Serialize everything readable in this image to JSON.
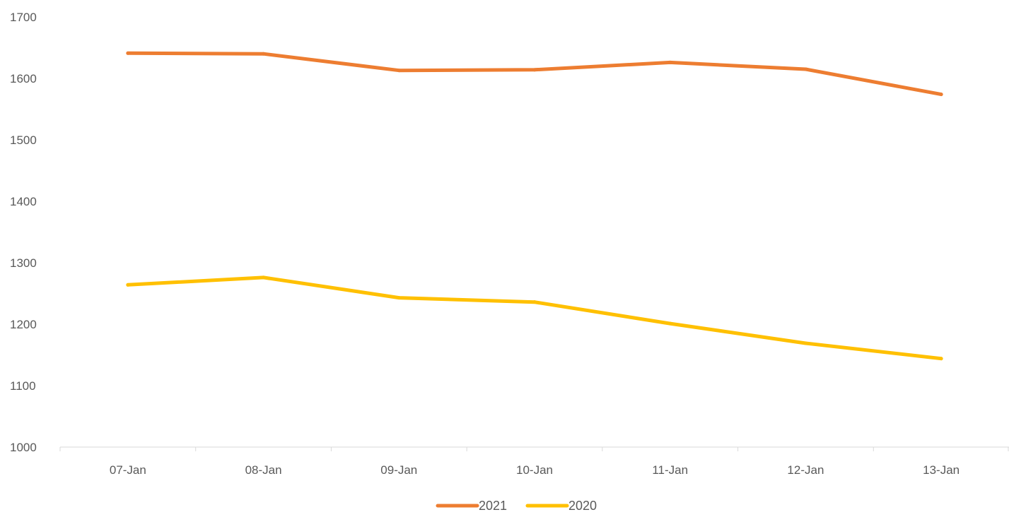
{
  "chart_data": {
    "type": "line",
    "title": "",
    "xlabel": "",
    "ylabel": "",
    "categories": [
      "07-Jan",
      "08-Jan",
      "09-Jan",
      "10-Jan",
      "11-Jan",
      "12-Jan",
      "13-Jan"
    ],
    "ylim": [
      1000,
      1700
    ],
    "yticks": [
      1000,
      1100,
      1200,
      1300,
      1400,
      1500,
      1600,
      1700
    ],
    "grid": false,
    "legend_position": "bottom",
    "series": [
      {
        "name": "2021",
        "color": "#ED7D31",
        "values": [
          1641,
          1640,
          1613,
          1614,
          1626,
          1615,
          1574
        ]
      },
      {
        "name": "2020",
        "color": "#FFC000",
        "values": [
          1264,
          1276,
          1243,
          1236,
          1201,
          1169,
          1144
        ]
      }
    ]
  }
}
